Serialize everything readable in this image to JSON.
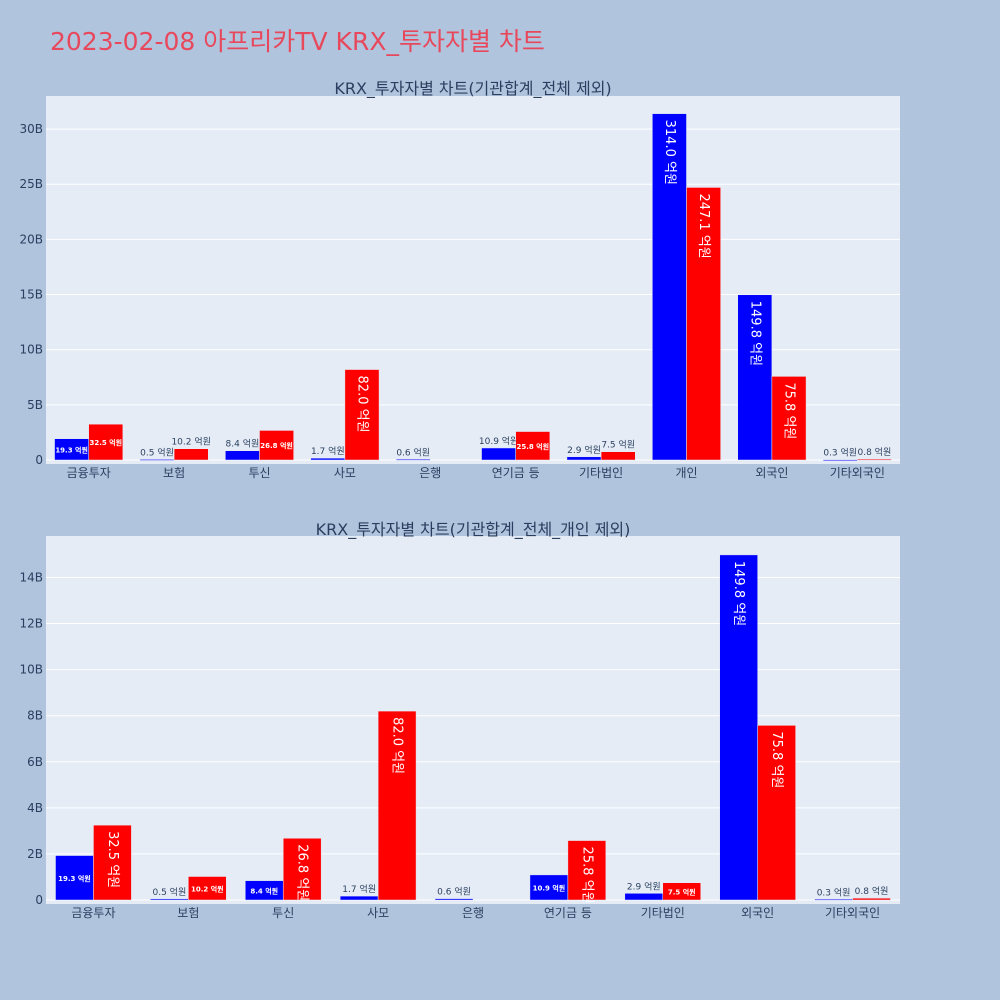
{
  "page_title": "2023-02-08 아프리카TV KRX_투자자별 차트",
  "colors": {
    "background": "#b0c4de",
    "plot_bg": "#e5ecf6",
    "title": "#e8485c",
    "buy": "#0000ff",
    "sell": "#ff0000"
  },
  "chart_data": [
    {
      "type": "bar",
      "title": "KRX_투자자별 차트(기관합계_전체 제외)",
      "categories": [
        "금융투자",
        "보험",
        "투신",
        "사모",
        "은행",
        "연기금 등",
        "기타법인",
        "개인",
        "외국인",
        "기타외국인"
      ],
      "series": [
        {
          "name": "매수",
          "values": [
            1.93,
            0.05,
            0.84,
            0.17,
            0.06,
            1.09,
            0.29,
            31.4,
            14.98,
            0.03
          ],
          "labels": [
            "19.3 억원",
            "0.5 억원",
            "8.4 억원",
            "1.7 억원",
            "0.6 억원",
            "10.9 억원",
            "2.9 억원",
            "314.0 억원",
            "149.8 억원",
            "0.3 억원"
          ]
        },
        {
          "name": "매도",
          "values": [
            3.25,
            1.02,
            2.68,
            8.2,
            0.0,
            2.58,
            0.75,
            24.71,
            7.58,
            0.08
          ],
          "labels": [
            "32.5 억원",
            "10.2 억원",
            "26.8 억원",
            "82.0 억원",
            "",
            "25.8 억원",
            "7.5 억원",
            "247.1 억원",
            "75.8 억원",
            "0.8 억원"
          ]
        }
      ],
      "ylim": [
        0,
        33
      ],
      "yticks": [
        0,
        5,
        10,
        15,
        20,
        25,
        30
      ],
      "ytick_labels": [
        "0",
        "5B",
        "10B",
        "15B",
        "20B",
        "25B",
        "30B"
      ]
    },
    {
      "type": "bar",
      "title": "KRX_투자자별 차트(기관합계_전체_개인 제외)",
      "categories": [
        "금융투자",
        "보험",
        "투신",
        "사모",
        "은행",
        "연기금 등",
        "기타법인",
        "외국인",
        "기타외국인"
      ],
      "series": [
        {
          "name": "매수",
          "values": [
            1.93,
            0.05,
            0.84,
            0.17,
            0.06,
            1.09,
            0.29,
            14.98,
            0.03
          ],
          "labels": [
            "19.3 억원",
            "0.5 억원",
            "8.4 억원",
            "1.7 억원",
            "0.6 억원",
            "10.9 억원",
            "2.9 억원",
            "149.8 억원",
            "0.3 억원"
          ]
        },
        {
          "name": "매도",
          "values": [
            3.25,
            1.02,
            2.68,
            8.2,
            0.0,
            2.58,
            0.75,
            7.58,
            0.08
          ],
          "labels": [
            "32.5 억원",
            "10.2 억원",
            "26.8 억원",
            "82.0 억원",
            "",
            "25.8 억원",
            "7.5 억원",
            "75.8 억원",
            "0.8 억원"
          ]
        }
      ],
      "ylim": [
        0,
        15.8
      ],
      "yticks": [
        0,
        2,
        4,
        6,
        8,
        10,
        12,
        14
      ],
      "ytick_labels": [
        "0",
        "2B",
        "4B",
        "6B",
        "8B",
        "10B",
        "12B",
        "14B"
      ]
    }
  ]
}
